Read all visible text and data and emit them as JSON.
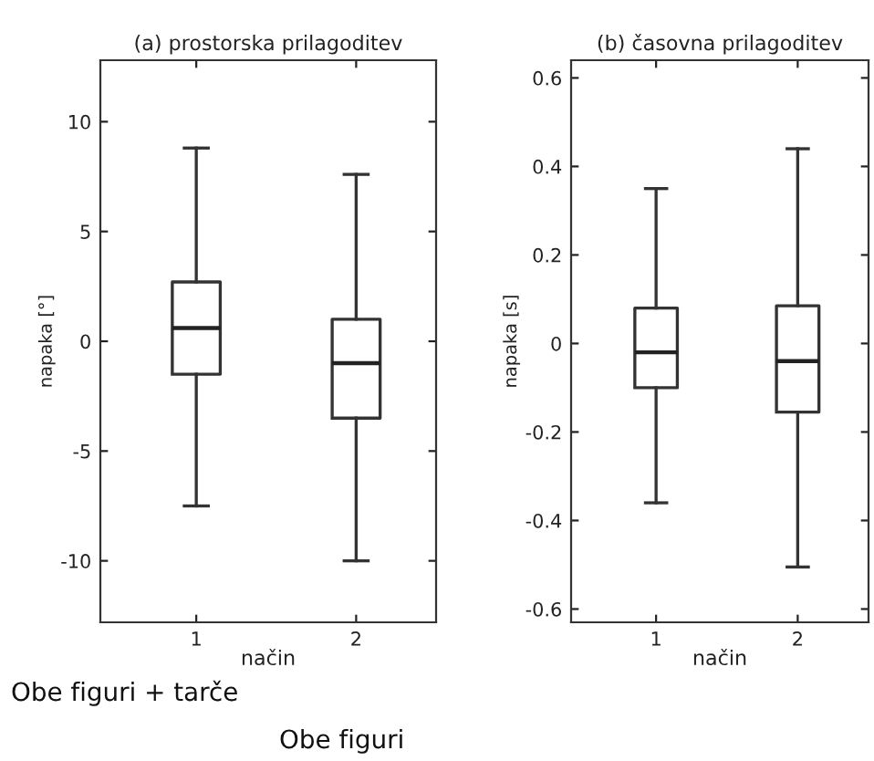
{
  "chart_data": [
    {
      "type": "box",
      "title": "(a) prostorska prilagoditev",
      "xlabel": "način",
      "ylabel": "napaka [°]",
      "categories": [
        "1",
        "2"
      ],
      "boxes": [
        {
          "low": -7.5,
          "q1": -1.5,
          "median": 0.6,
          "q3": 2.7,
          "high": 8.8
        },
        {
          "low": -10,
          "q1": -3.5,
          "median": -1.0,
          "q3": 1.0,
          "high": 7.6
        }
      ],
      "ylim": [
        -12.8,
        12.8
      ],
      "yticks": [
        -10,
        -5,
        0,
        5,
        10
      ],
      "grid": false,
      "legend": false,
      "annotations": [
        "Obe figuri + tarče",
        "Obe figuri"
      ]
    },
    {
      "type": "box",
      "title": "(b) časovna prilagoditev",
      "xlabel": "način",
      "ylabel": "napaka [s]",
      "categories": [
        "1",
        "2"
      ],
      "boxes": [
        {
          "low": -0.36,
          "q1": -0.1,
          "median": -0.02,
          "q3": 0.08,
          "high": 0.35
        },
        {
          "low": -0.505,
          "q1": -0.155,
          "median": -0.04,
          "q3": 0.085,
          "high": 0.44
        }
      ],
      "ylim": [
        -0.63,
        0.64
      ],
      "yticks": [
        -0.6,
        -0.4,
        -0.2,
        0,
        0.2,
        0.4,
        0.6
      ],
      "grid": false,
      "legend": false
    }
  ]
}
